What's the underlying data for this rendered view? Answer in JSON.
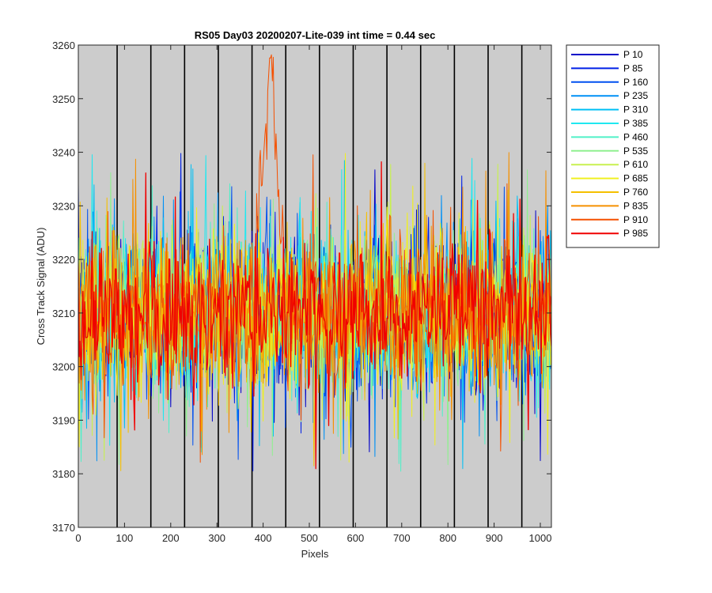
{
  "chart_data": {
    "type": "line",
    "title": "RS05 Day03 20200207-Lite-039 int time = 0.44 sec",
    "xlabel": "Pixels",
    "ylabel": "Cross Track Signal (ADU)",
    "xlim": [
      0,
      1024
    ],
    "ylim": [
      3170,
      3260
    ],
    "xticks": [
      0,
      100,
      200,
      300,
      400,
      500,
      600,
      700,
      800,
      900,
      1000
    ],
    "yticks": [
      3170,
      3180,
      3190,
      3200,
      3210,
      3220,
      3230,
      3240,
      3250,
      3260
    ],
    "background": "#cccccc",
    "grid": false,
    "noise": {
      "mean": 3210,
      "typical_range": [
        3195,
        3228
      ],
      "outlier_range": [
        3177,
        3239
      ]
    },
    "vertical_lines": [
      84,
      157,
      230,
      303,
      376,
      449,
      522,
      595,
      668,
      741,
      814,
      887,
      960
    ],
    "spike": {
      "series": "P 910",
      "x_range": [
        385,
        445
      ],
      "peak_value": 3260
    },
    "legend_position": "outside-right",
    "series": [
      {
        "name": "P 10",
        "color": "#0000c8"
      },
      {
        "name": "P 85",
        "color": "#0020e6"
      },
      {
        "name": "P 160",
        "color": "#0050f0"
      },
      {
        "name": "P 235",
        "color": "#0090f5"
      },
      {
        "name": "P 310",
        "color": "#00c0f5"
      },
      {
        "name": "P 385",
        "color": "#20e8f0"
      },
      {
        "name": "P 460",
        "color": "#50f0c8"
      },
      {
        "name": "P 535",
        "color": "#90f090"
      },
      {
        "name": "P 610",
        "color": "#c8f050"
      },
      {
        "name": "P 685",
        "color": "#f0f020"
      },
      {
        "name": "P 760",
        "color": "#f5c000"
      },
      {
        "name": "P 835",
        "color": "#f59000"
      },
      {
        "name": "P 910",
        "color": "#f55000"
      },
      {
        "name": "P 985",
        "color": "#f00000"
      }
    ]
  }
}
